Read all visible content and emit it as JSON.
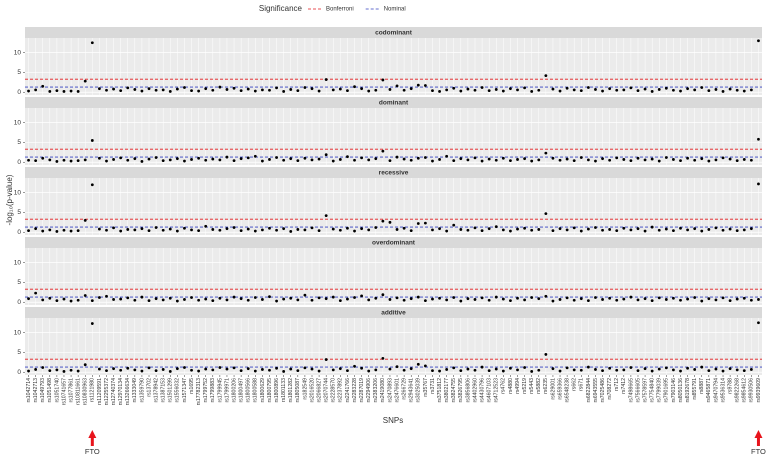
{
  "chart_data": {
    "type": "scatter",
    "legend_title": "Significance",
    "legend_position": "top",
    "reference_lines": [
      {
        "name": "Bonferroni",
        "value": 3.3,
        "color": "#e41a1c"
      },
      {
        "name": "Nominal",
        "value": 1.3,
        "color": "#3340c0"
      }
    ],
    "x_label": "SNPs",
    "y_label": "-log₁₀(p-value)",
    "ylim": [
      -0.7,
      13.7
    ],
    "yticks": [
      0,
      5,
      10
    ],
    "grid": true,
    "point_color": "#000000",
    "categories": [
      "rs1042714",
      "rs1042713",
      "rs1049793",
      "rs1051498",
      "rs1051740",
      "rs10741657",
      "rs1077861",
      "rs10811661",
      "rs10830963",
      "rs1121980",
      "rs11209591",
      "rs12255372",
      "rs12740374",
      "rs12970134",
      "rs13266634",
      "rs1333049",
      "rs1359790",
      "rs13702",
      "rs1378942",
      "rs1387153",
      "rs1501299",
      "rs1556032",
      "rs1571347",
      "rs1695",
      "rs17782313",
      "rs1799752",
      "rs1799883",
      "rs1799945",
      "rs1799971",
      "rs1800206",
      "rs1800497",
      "rs1800566",
      "rs1800588",
      "rs1800629",
      "rs1800795",
      "rs1800896",
      "rs1801133",
      "rs1801282",
      "rs1805087",
      "rs182549",
      "rs2016520",
      "rs2066827",
      "rs2070744",
      "rs2228570",
      "rs2237892",
      "rs2241766",
      "rs2283228",
      "rs2287019",
      "rs2294906",
      "rs2383206",
      "rs2419080",
      "rs2470893",
      "rs2476601",
      "rs266729",
      "rs2943641",
      "rs3025039",
      "rs35767",
      "rs3731",
      "rs3751812",
      "rs3802177",
      "rs3824755",
      "rs3826795",
      "rs3856806",
      "rs4402960",
      "rs4430796",
      "rs4607103",
      "rs4712523",
      "rs4762",
      "rs4880",
      "rs4994",
      "rs5219",
      "rs5443",
      "rs5882",
      "rs6235",
      "rs629001",
      "rs659366",
      "rs6548238",
      "rs662",
      "rs671",
      "rs6822844",
      "rs6943555",
      "rs7025486",
      "rs708272",
      "rs712",
      "rs7412",
      "rs7498665",
      "rs7566605",
      "rs7578597",
      "rs7754840",
      "rs7799039",
      "rs7901695",
      "rs7903146",
      "rs8050136",
      "rs8192678",
      "rs855791",
      "rs8887",
      "rs9465871",
      "rs9470794",
      "rs9536314",
      "rs9788",
      "rs9822268",
      "rs9854612",
      "rs9930506",
      "rs9939609"
    ],
    "facets": [
      {
        "name": "codominant",
        "values": [
          0.3,
          0.6,
          1.5,
          0.2,
          0.4,
          0.2,
          0.3,
          0.2,
          2.8,
          12.5,
          0.9,
          0.5,
          0.8,
          0.4,
          1.1,
          0.7,
          0.3,
          0.9,
          0.5,
          0.6,
          0.2,
          0.8,
          1.2,
          0.4,
          0.3,
          0.9,
          0.5,
          1.3,
          0.7,
          1.0,
          0.4,
          0.8,
          0.3,
          0.6,
          0.5,
          1.1,
          0.2,
          0.7,
          0.4,
          1.2,
          0.9,
          0.3,
          3.2,
          0.6,
          0.8,
          0.4,
          1.4,
          0.9,
          0.3,
          0.5,
          3.1,
          0.7,
          1.6,
          0.5,
          0.9,
          1.8,
          1.7,
          0.4,
          0.2,
          0.6,
          1.0,
          0.3,
          0.8,
          0.5,
          1.2,
          0.4,
          0.7,
          0.3,
          0.9,
          0.6,
          1.1,
          0.2,
          0.5,
          4.2,
          0.8,
          0.3,
          1.0,
          0.6,
          0.4,
          1.2,
          0.7,
          0.3,
          0.9,
          0.5,
          0.6,
          1.1,
          0.4,
          0.8,
          0.2,
          0.7,
          1.0,
          0.5,
          0.3,
          0.9,
          0.6,
          1.2,
          0.4,
          0.7,
          0.2,
          0.8,
          0.5,
          0.3,
          0.6,
          13.0
        ]
      },
      {
        "name": "dominant",
        "values": [
          0.5,
          0.4,
          1.0,
          0.6,
          0.2,
          0.5,
          0.3,
          0.4,
          0.6,
          5.5,
          1.0,
          0.3,
          0.7,
          1.1,
          0.5,
          0.9,
          0.2,
          0.8,
          1.2,
          0.4,
          0.6,
          0.9,
          0.3,
          0.7,
          1.0,
          0.5,
          0.8,
          0.6,
          1.3,
          0.4,
          0.9,
          1.1,
          1.5,
          0.3,
          0.7,
          1.2,
          0.5,
          0.9,
          0.4,
          1.0,
          0.6,
          0.8,
          1.9,
          0.3,
          0.7,
          1.4,
          0.5,
          1.1,
          0.6,
          0.9,
          2.8,
          0.4,
          1.3,
          0.8,
          0.5,
          1.0,
          1.2,
          0.3,
          0.7,
          1.5,
          0.4,
          0.9,
          0.6,
          1.1,
          0.3,
          0.8,
          0.5,
          1.0,
          0.4,
          0.7,
          0.9,
          0.3,
          0.6,
          2.3,
          1.0,
          0.5,
          0.8,
          0.4,
          1.2,
          0.6,
          0.3,
          0.9,
          0.5,
          1.1,
          0.7,
          0.4,
          1.0,
          0.6,
          0.8,
          0.3,
          1.2,
          0.7,
          0.4,
          1.0,
          0.5,
          0.9,
          0.3,
          0.6,
          1.1,
          0.8,
          0.4,
          0.7,
          0.5,
          5.8
        ]
      },
      {
        "name": "recessive",
        "values": [
          0.4,
          0.9,
          0.3,
          0.6,
          0.2,
          0.5,
          0.3,
          0.4,
          3.0,
          12.0,
          0.8,
          0.5,
          1.1,
          0.3,
          0.7,
          0.6,
          0.9,
          0.4,
          1.2,
          0.5,
          0.8,
          0.3,
          1.0,
          0.6,
          0.4,
          1.5,
          0.7,
          0.5,
          0.9,
          1.2,
          0.4,
          0.8,
          0.3,
          0.6,
          1.0,
          0.5,
          0.9,
          0.2,
          0.7,
          0.6,
          1.1,
          0.4,
          4.2,
          0.8,
          0.5,
          1.0,
          0.3,
          0.9,
          0.6,
          1.2,
          2.8,
          2.5,
          0.7,
          1.0,
          0.4,
          2.2,
          2.3,
          0.6,
          0.9,
          0.3,
          1.8,
          0.7,
          0.5,
          1.1,
          0.4,
          0.9,
          1.4,
          0.6,
          0.3,
          0.8,
          1.0,
          0.5,
          0.7,
          4.7,
          0.4,
          0.9,
          0.6,
          1.1,
          0.3,
          0.8,
          1.2,
          0.5,
          0.7,
          0.4,
          1.0,
          0.6,
          0.9,
          0.3,
          1.3,
          0.5,
          0.8,
          0.4,
          1.0,
          0.6,
          0.9,
          0.3,
          0.7,
          1.1,
          0.5,
          0.8,
          0.4,
          0.6,
          0.9,
          12.2
        ]
      },
      {
        "name": "overdominant",
        "values": [
          0.9,
          2.3,
          0.6,
          1.0,
          0.4,
          0.8,
          0.3,
          0.5,
          1.7,
          0.4,
          1.2,
          1.5,
          0.7,
          0.8,
          1.1,
          0.5,
          1.3,
          0.4,
          0.9,
          0.6,
          1.0,
          0.3,
          0.7,
          1.2,
          0.5,
          0.8,
          0.4,
          1.0,
          0.6,
          1.3,
          0.9,
          0.5,
          1.2,
          0.7,
          1.4,
          0.3,
          0.8,
          1.0,
          0.6,
          1.8,
          0.5,
          1.1,
          0.9,
          1.3,
          0.4,
          0.8,
          1.2,
          1.6,
          0.6,
          1.0,
          1.9,
          0.7,
          1.1,
          0.5,
          0.9,
          1.3,
          0.4,
          0.8,
          1.0,
          0.6,
          1.2,
          0.3,
          0.9,
          0.7,
          1.1,
          0.5,
          1.3,
          0.8,
          0.4,
          1.0,
          0.6,
          1.2,
          0.9,
          1.5,
          0.3,
          0.7,
          1.1,
          0.5,
          0.9,
          0.4,
          1.2,
          0.7,
          1.0,
          0.5,
          0.8,
          1.3,
          0.6,
          0.9,
          0.4,
          1.1,
          0.7,
          1.0,
          0.5,
          0.8,
          1.2,
          0.3,
          0.9,
          0.6,
          1.1,
          0.4,
          0.8,
          1.0,
          0.5,
          0.7
        ]
      },
      {
        "name": "additive",
        "values": [
          0.3,
          0.7,
          1.2,
          0.4,
          0.6,
          0.2,
          0.5,
          0.3,
          1.9,
          12.3,
          0.8,
          0.4,
          0.9,
          0.5,
          1.0,
          0.6,
          0.3,
          1.1,
          0.4,
          0.7,
          0.2,
          0.9,
          1.2,
          0.5,
          0.3,
          0.8,
          0.6,
          1.2,
          0.8,
          1.1,
          0.4,
          0.9,
          0.3,
          0.7,
          0.5,
          1.0,
          0.2,
          0.8,
          0.4,
          1.1,
          0.8,
          0.3,
          3.2,
          0.6,
          0.9,
          0.4,
          1.5,
          1.0,
          0.3,
          0.6,
          3.5,
          0.8,
          1.4,
          0.5,
          0.9,
          2.0,
          1.6,
          0.4,
          0.3,
          0.7,
          1.1,
          0.4,
          0.8,
          0.5,
          1.3,
          0.4,
          0.8,
          0.3,
          1.0,
          0.6,
          1.2,
          0.2,
          0.5,
          4.5,
          0.9,
          0.3,
          1.1,
          0.6,
          0.5,
          1.3,
          0.7,
          0.4,
          1.0,
          0.5,
          0.6,
          1.2,
          0.4,
          0.9,
          0.3,
          0.8,
          1.1,
          0.6,
          0.3,
          1.0,
          0.7,
          1.3,
          0.4,
          0.8,
          0.3,
          0.9,
          0.6,
          0.4,
          0.7,
          12.5
        ]
      }
    ],
    "annotations": [
      {
        "text": "FTO",
        "category": "rs1121980",
        "color": "#e8141c"
      },
      {
        "text": "FTO",
        "category": "rs9939609",
        "color": "#e8141c"
      }
    ]
  }
}
